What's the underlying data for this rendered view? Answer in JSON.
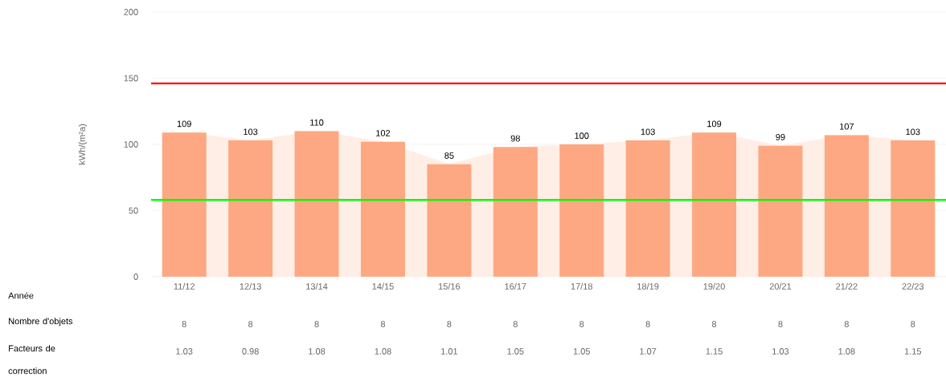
{
  "chart_data": {
    "type": "bar",
    "ylabel": "kWh/(m²a)",
    "categories": [
      "11/12",
      "12/13",
      "13/14",
      "14/15",
      "15/16",
      "16/17",
      "17/18",
      "18/19",
      "19/20",
      "20/21",
      "21/22",
      "22/23"
    ],
    "series": [
      {
        "type": "area",
        "color": "#feeee5",
        "values": [
          109,
          103,
          110,
          102,
          85,
          98,
          100,
          103,
          109,
          99,
          107,
          103
        ]
      },
      {
        "color": "#fda882",
        "values": [
          109,
          103,
          110,
          102,
          85,
          98,
          100,
          103,
          109,
          99,
          107,
          103
        ],
        "value_labels": [
          "109",
          "103",
          "110",
          "102",
          "85",
          "98",
          "100",
          "103",
          "109",
          "99",
          "107",
          "103"
        ]
      }
    ],
    "ylim": [
      0,
      200
    ],
    "yticks": [
      0,
      50,
      100,
      150,
      200
    ],
    "grid": "y",
    "ref_lines": [
      {
        "axis": "y",
        "value": 146,
        "color": "#ff0000"
      },
      {
        "axis": "y",
        "value": 58,
        "color": "#00ff00"
      }
    ],
    "annotations": [
      "Année",
      "Nombre d'objets",
      "8",
      "8",
      "8",
      "8",
      "8",
      "8",
      "8",
      "8",
      "8",
      "8",
      "8",
      "8",
      "Facteurs de correction",
      "1.03",
      "0.98",
      "1.08",
      "1.08",
      "1.01",
      "1.05",
      "1.05",
      "1.07",
      "1.15",
      "1.03",
      "1.08",
      "1.15"
    ]
  }
}
